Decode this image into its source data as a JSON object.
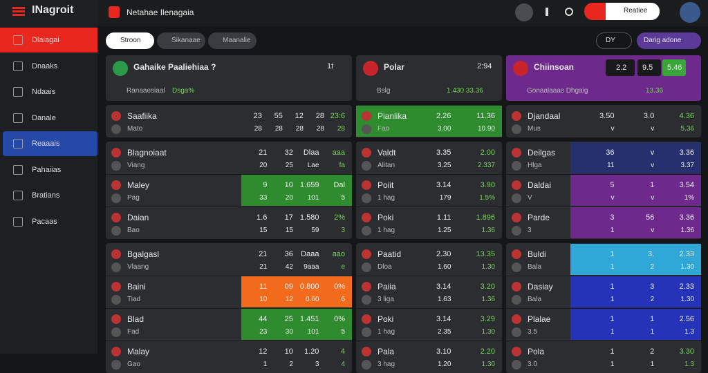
{
  "sidebar": {
    "logo": "INagroit",
    "active_color": "#e8271f",
    "items": [
      {
        "label": "Dlaiagai",
        "color": "#e8271f"
      },
      {
        "label": "Dnaaks"
      },
      {
        "label": "Ndaais"
      },
      {
        "label": "Danale"
      },
      {
        "label": "Reaaais",
        "color": "#2648a8"
      },
      {
        "label": "Pahaiias"
      },
      {
        "label": "Bratians"
      },
      {
        "label": "Pacaas"
      }
    ]
  },
  "topbar": {
    "title": "Netahae Ilenagaia",
    "search": "Reatiee"
  },
  "tabs": {
    "items": [
      "Stroon",
      "Sikanaae",
      "Maanalie"
    ],
    "toggle": "DY",
    "action": "Darig adone"
  },
  "columns": [
    {
      "header": {
        "title": "Gahaike Paaliehiaa ?",
        "badge": "1t",
        "sub": "Ranaaesiaal",
        "note": "Dsga%",
        "color": "#2b2d31"
      },
      "groups": [
        [
          {
            "name": "Saafiika",
            "sub": "Mato",
            "top": [
              "23",
              "55",
              "12",
              "28",
              "23:6"
            ],
            "bottom": [
              "28",
              "28",
              "28",
              "28",
              "28"
            ]
          }
        ],
        [
          {
            "name": "Blagnoiaat",
            "sub": "Viang",
            "top": [
              "21",
              "32",
              "Dlaa",
              "aaa"
            ],
            "bottom": [
              "20",
              "25",
              "Lae",
              "fa"
            ]
          },
          {
            "name": "Maley",
            "sub": "Pag",
            "top": [
              "9",
              "10",
              "1.659",
              "Dal"
            ],
            "bottom": [
              "33",
              "20",
              "101",
              "5"
            ],
            "band": "#2e8b2e"
          },
          {
            "name": "Daian",
            "sub": "Bao",
            "top": [
              "1.6",
              "17",
              "1.580",
              "2%"
            ],
            "bottom": [
              "15",
              "15",
              "59",
              "3"
            ]
          }
        ],
        [
          {
            "name": "Bgalgasl",
            "sub": "Vlaang",
            "top": [
              "21",
              "36",
              "Daaa",
              "aao"
            ],
            "bottom": [
              "21",
              "42",
              "9aaa",
              "e"
            ]
          },
          {
            "name": "Baini",
            "sub": "Tiad",
            "top": [
              "11",
              "09",
              "0.800",
              "0%"
            ],
            "bottom": [
              "10",
              "12",
              "0.60",
              "6"
            ],
            "band": "#f26a1b"
          },
          {
            "name": "Blad",
            "sub": "Fad",
            "top": [
              "44",
              "25",
              "1.451",
              "0%"
            ],
            "bottom": [
              "23",
              "30",
              "101",
              "5"
            ],
            "band": "#2e8b2e"
          },
          {
            "name": "Malay",
            "sub": "Gao",
            "top": [
              "12",
              "10",
              "1.20",
              "4"
            ],
            "bottom": [
              "1",
              "2",
              "3",
              "4"
            ]
          }
        ]
      ]
    },
    {
      "header": {
        "title": "Polar",
        "badge": "2:94",
        "sub": "Bslg",
        "note": "1.430 33.36",
        "color": "#2b2d31"
      },
      "groups": [
        [
          {
            "name": "Pianlika",
            "sub": "Fao",
            "top": [
              "2.26",
              "11.36"
            ],
            "bottom": [
              "3.00",
              "10.90"
            ],
            "band": "#2e8b2e"
          }
        ],
        [
          {
            "name": "Valdt",
            "sub": "Alitan",
            "top": [
              "3.35",
              "2.00"
            ],
            "bottom": [
              "3.25",
              "2.337"
            ]
          },
          {
            "name": "Poiit",
            "sub": "1 hag",
            "top": [
              "3.14",
              "3.90"
            ],
            "bottom": [
              "179",
              "1.5%"
            ]
          },
          {
            "name": "Poki",
            "sub": "1 hag",
            "top": [
              "1.11",
              "1.896"
            ],
            "bottom": [
              "1.25",
              "1.36"
            ]
          }
        ],
        [
          {
            "name": "Paatid",
            "sub": "Dloa",
            "top": [
              "2.30",
              "13.35"
            ],
            "bottom": [
              "1.60",
              "1.30"
            ]
          },
          {
            "name": "Paiia",
            "sub": "3 liga",
            "top": [
              "3.14",
              "3.20"
            ],
            "bottom": [
              "1.63",
              "1.36"
            ]
          },
          {
            "name": "Poki",
            "sub": "1 hag",
            "top": [
              "3.14",
              "3.29"
            ],
            "bottom": [
              "2.35",
              "1.30"
            ]
          },
          {
            "name": "Pala",
            "sub": "3 hag",
            "top": [
              "3.10",
              "2.20"
            ],
            "bottom": [
              "1.20",
              "1.30"
            ]
          }
        ]
      ]
    },
    {
      "header": {
        "title": "Chiinsoan",
        "badge": "2.2",
        "sub": "Gonaalaaas Dhgaig",
        "note": "13.36",
        "values": [
          "9.5",
          "5.46"
        ],
        "color": "#6d2a8c"
      },
      "groups": [
        [
          {
            "name": "Djandaal",
            "sub": "Mus",
            "top": [
              "3.50",
              "3.0",
              "4.36"
            ],
            "bottom": [
              "v",
              "v",
              "5.36"
            ]
          }
        ],
        [
          {
            "name": "Deilgas",
            "sub": "Hlga",
            "top": [
              "36",
              "v",
              "3.36"
            ],
            "bottom": [
              "11",
              "v",
              "3.37"
            ],
            "band": "#27306e"
          },
          {
            "name": "Daldai",
            "sub": "V",
            "top": [
              "5",
              "1",
              "3.54"
            ],
            "bottom": [
              "v",
              "v",
              "1%"
            ],
            "band": "#6d2a8c"
          },
          {
            "name": "Parde",
            "sub": "3",
            "top": [
              "3",
              "56",
              "3.36"
            ],
            "bottom": [
              "1",
              "v",
              "1.36"
            ],
            "band": "#6d2a8c"
          }
        ],
        [
          {
            "name": "Buldi",
            "sub": "Bala",
            "top": [
              "1",
              "3.",
              "2.33"
            ],
            "bottom": [
              "1",
              "2",
              "1.30"
            ],
            "band": "#2fa8d8"
          },
          {
            "name": "Dasiay",
            "sub": "Bala",
            "top": [
              "1",
              "3",
              "2.33"
            ],
            "bottom": [
              "1",
              "2",
              "1.30"
            ],
            "band": "#2433b8"
          },
          {
            "name": "Plalae",
            "sub": "3.5",
            "top": [
              "1",
              "1",
              "2.56"
            ],
            "bottom": [
              "1",
              "1",
              "1.3"
            ],
            "band": "#2433b8"
          },
          {
            "name": "Pola",
            "sub": "3.0",
            "top": [
              "1",
              "2",
              "3.30"
            ],
            "bottom": [
              "1",
              "1",
              "1.3"
            ]
          }
        ]
      ]
    }
  ]
}
